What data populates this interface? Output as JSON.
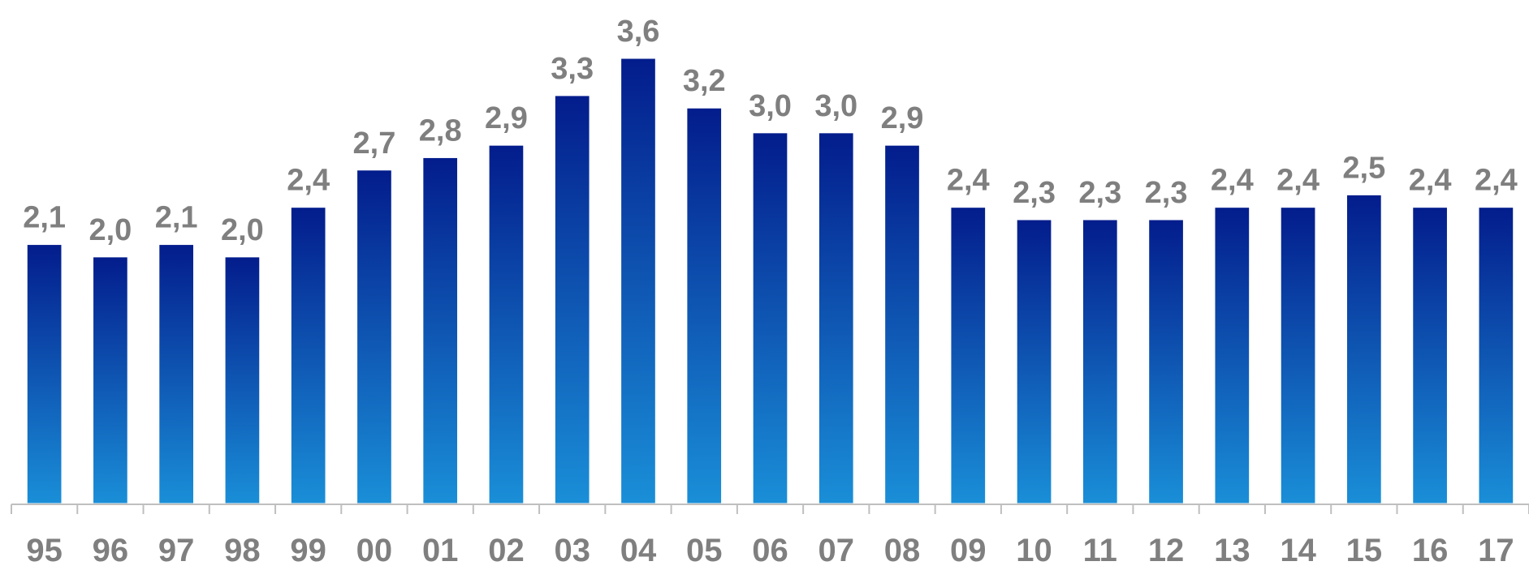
{
  "chart_data": {
    "type": "bar",
    "categories": [
      "95",
      "96",
      "97",
      "98",
      "99",
      "00",
      "01",
      "02",
      "03",
      "04",
      "05",
      "06",
      "07",
      "08",
      "09",
      "10",
      "11",
      "12",
      "13",
      "14",
      "15",
      "16",
      "17"
    ],
    "values": [
      2.1,
      2.0,
      2.1,
      2.0,
      2.4,
      2.7,
      2.8,
      2.9,
      3.3,
      3.6,
      3.2,
      3.0,
      3.0,
      2.9,
      2.4,
      2.3,
      2.3,
      2.3,
      2.4,
      2.4,
      2.5,
      2.4,
      2.4
    ],
    "value_labels": [
      "2,1",
      "2,0",
      "2,1",
      "2,0",
      "2,4",
      "2,7",
      "2,8",
      "2,9",
      "3,3",
      "3,6",
      "3,2",
      "3,0",
      "3,0",
      "2,9",
      "2,4",
      "2,3",
      "2,3",
      "2,3",
      "2,4",
      "2,4",
      "2,5",
      "2,4",
      "2,4"
    ],
    "title": "",
    "xlabel": "",
    "ylabel": "",
    "ylim": [
      0,
      3.6
    ],
    "grid": false,
    "legend": "none",
    "colors": {
      "bar_top": "#031c8c",
      "bar_bottom": "#1a8fd8",
      "bar_outline": "#ffffff",
      "label_text": "#7f7f7f",
      "axis_line": "#bfbfbf"
    }
  }
}
